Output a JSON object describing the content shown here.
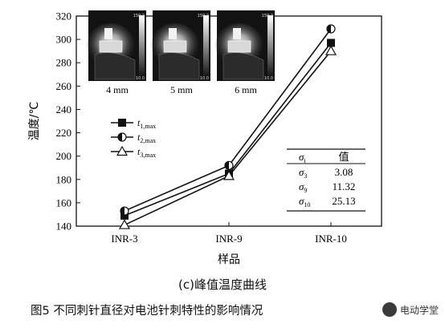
{
  "chart_data": {
    "type": "line",
    "categories": [
      "INR-3",
      "INR-9",
      "INR-10"
    ],
    "series": [
      {
        "name": "t1,max",
        "label_main": "t",
        "label_sub": "1,max",
        "marker": "square",
        "values": [
          149,
          185,
          297
        ]
      },
      {
        "name": "t2,max",
        "label_main": "t",
        "label_sub": "2,max",
        "marker": "half-circle",
        "values": [
          153,
          192,
          309
        ]
      },
      {
        "name": "t3,max",
        "label_main": "t",
        "label_sub": "3,max",
        "marker": "triangle",
        "values": [
          141,
          183,
          290
        ]
      }
    ],
    "ylabel": "温度/℃",
    "xlabel": "样品",
    "ylim": [
      140,
      320
    ],
    "yticks": [
      140,
      160,
      180,
      200,
      220,
      240,
      260,
      280,
      300,
      320
    ],
    "legend_position": "upper-left",
    "grid": false
  },
  "thumbnails": [
    {
      "caption": "4 mm",
      "scale_top": "150.2",
      "scale_bottom": "10.0"
    },
    {
      "caption": "5 mm",
      "scale_top": "150.2",
      "scale_bottom": "10.0"
    },
    {
      "caption": "6 mm",
      "scale_top": "150.2",
      "scale_bottom": "10.0"
    }
  ],
  "stats_table": {
    "header_main": "σ",
    "header_sub": "i",
    "header_value": "值",
    "rows": [
      {
        "main": "σ",
        "sub": "3",
        "value": "3.08"
      },
      {
        "main": "σ",
        "sub": "9",
        "value": "11.32"
      },
      {
        "main": "σ",
        "sub": "10",
        "value": "25.13"
      }
    ]
  },
  "subcaption": "(c)峰值温度曲线",
  "caption": "图5 不同刺针直径对电池针刺特性的影响情况",
  "watermark": "电动学堂"
}
